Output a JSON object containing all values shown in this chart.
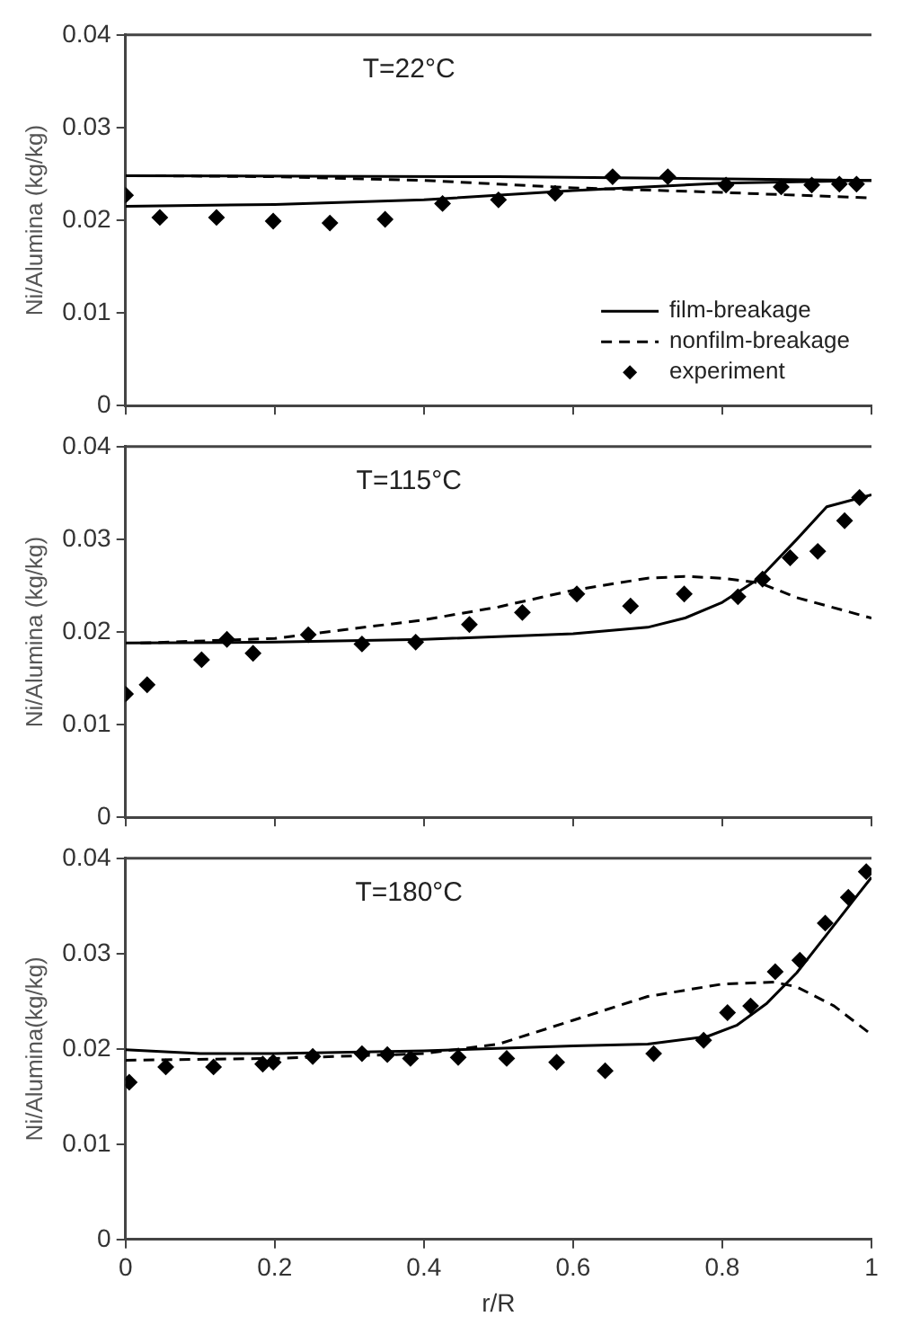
{
  "chart_data": [
    {
      "type": "line",
      "ylabel": "Ni/Alumina (kg/kg)",
      "annotations": [
        "T=22°C"
      ],
      "xlim": [
        0,
        1
      ],
      "xticks": [
        0,
        0.2,
        0.4,
        0.6,
        0.8,
        1
      ],
      "ylim": [
        0,
        0.04
      ],
      "yticks": [
        0,
        0.01,
        0.02,
        0.03,
        0.04
      ],
      "tick_labels": "y",
      "grid": false,
      "legend": "bottom right",
      "series": [
        {
          "type": "line",
          "name": "film-breakage",
          "color": "#000000",
          "line_style": "solid",
          "marker": "none",
          "x": [
            0,
            0.2,
            0.4,
            0.6,
            0.8,
            1
          ],
          "values": [
            0.0215,
            0.0217,
            0.0222,
            0.0232,
            0.024,
            0.0243
          ]
        },
        {
          "type": "line",
          "name": "nonfilm-breakage",
          "color": "#000000",
          "line_style": "dashed",
          "marker": "none",
          "x": [
            0.04,
            0.2,
            0.4,
            0.6,
            0.8,
            1
          ],
          "values": [
            0.0248,
            0.0247,
            0.0243,
            0.0235,
            0.023,
            0.0224
          ]
        },
        {
          "type": "scatter",
          "name": "experiment",
          "color": "#000000",
          "marker": "diamond",
          "x": [
            0,
            0.046,
            0.122,
            0.198,
            0.274,
            0.348,
            0.425,
            0.5,
            0.576,
            0.653,
            0.727,
            0.805,
            0.879,
            0.92,
            0.957,
            0.98
          ],
          "values": [
            0.0227,
            0.0203,
            0.0203,
            0.0199,
            0.0197,
            0.0201,
            0.0218,
            0.0222,
            0.0229,
            0.0247,
            0.0247,
            0.0238,
            0.0236,
            0.0238,
            0.0239,
            0.0239
          ]
        },
        {
          "type": "line",
          "color": "#000000",
          "line_style": "solid",
          "marker": "none",
          "x": [
            0,
            0.5,
            1
          ],
          "values": [
            0.0248,
            0.0247,
            0.0243
          ]
        }
      ]
    },
    {
      "type": "line",
      "ylabel": "Ni/Alumina (kg/kg)",
      "annotations": [
        "T=115°C"
      ],
      "xlim": [
        0,
        1
      ],
      "xticks": [
        0,
        0.2,
        0.4,
        0.6,
        0.8,
        1
      ],
      "ylim": [
        0,
        0.04
      ],
      "yticks": [
        0,
        0.01,
        0.02,
        0.03,
        0.04
      ],
      "tick_labels": "y",
      "grid": false,
      "series": [
        {
          "type": "line",
          "color": "#000000",
          "line_style": "solid",
          "marker": "none",
          "x": [
            0,
            0.2,
            0.4,
            0.6,
            0.7,
            0.75,
            0.8,
            0.85,
            0.9,
            0.94,
            1
          ],
          "values": [
            0.0188,
            0.0189,
            0.0192,
            0.0198,
            0.0205,
            0.0215,
            0.0232,
            0.0258,
            0.03,
            0.0335,
            0.0348
          ]
        },
        {
          "type": "line",
          "color": "#000000",
          "line_style": "dashed",
          "marker": "none",
          "x": [
            0.02,
            0.2,
            0.4,
            0.5,
            0.6,
            0.7,
            0.75,
            0.8,
            0.85,
            0.9,
            1
          ],
          "values": [
            0.0188,
            0.0193,
            0.0213,
            0.0227,
            0.0245,
            0.0258,
            0.026,
            0.0258,
            0.0253,
            0.0237,
            0.0215
          ]
        },
        {
          "type": "scatter",
          "color": "#000000",
          "marker": "diamond",
          "x": [
            0,
            0.029,
            0.102,
            0.136,
            0.171,
            0.245,
            0.317,
            0.389,
            0.461,
            0.532,
            0.605,
            0.677,
            0.749,
            0.821,
            0.854,
            0.891,
            0.928,
            0.964,
            0.984
          ],
          "values": [
            0.0133,
            0.0143,
            0.017,
            0.0192,
            0.0177,
            0.0197,
            0.0187,
            0.0189,
            0.0208,
            0.0221,
            0.0241,
            0.0228,
            0.0241,
            0.0238,
            0.0257,
            0.028,
            0.0287,
            0.032,
            0.0345
          ]
        }
      ]
    },
    {
      "type": "line",
      "xlabel": "r/R",
      "ylabel": "Ni/Alumina(kg/kg)",
      "annotations": [
        "T=180°C"
      ],
      "xlim": [
        0,
        1
      ],
      "xticks": [
        0,
        0.2,
        0.4,
        0.6,
        0.8,
        1
      ],
      "ylim": [
        0,
        0.04
      ],
      "yticks": [
        0,
        0.01,
        0.02,
        0.03,
        0.04
      ],
      "grid": false,
      "series": [
        {
          "type": "line",
          "color": "#000000",
          "line_style": "solid",
          "marker": "none",
          "x": [
            0,
            0.1,
            0.2,
            0.4,
            0.6,
            0.7,
            0.78,
            0.82,
            0.86,
            0.9,
            0.94,
            0.98,
            1
          ],
          "values": [
            0.0199,
            0.0195,
            0.0195,
            0.0198,
            0.0203,
            0.0205,
            0.0213,
            0.0225,
            0.0248,
            0.028,
            0.032,
            0.036,
            0.038
          ]
        },
        {
          "type": "line",
          "color": "#000000",
          "line_style": "dashed",
          "marker": "none",
          "x": [
            0,
            0.2,
            0.4,
            0.5,
            0.6,
            0.7,
            0.8,
            0.87,
            0.9,
            0.95,
            1
          ],
          "values": [
            0.0188,
            0.019,
            0.0195,
            0.0205,
            0.023,
            0.0255,
            0.0268,
            0.027,
            0.0265,
            0.0245,
            0.0215
          ]
        },
        {
          "type": "scatter",
          "color": "#000000",
          "marker": "diamond",
          "x": [
            0.005,
            0.054,
            0.118,
            0.184,
            0.198,
            0.251,
            0.317,
            0.351,
            0.382,
            0.446,
            0.511,
            0.578,
            0.643,
            0.708,
            0.775,
            0.807,
            0.838,
            0.871,
            0.904,
            0.938,
            0.969,
            0.993
          ],
          "values": [
            0.0165,
            0.0181,
            0.0181,
            0.0184,
            0.0186,
            0.0192,
            0.0195,
            0.0194,
            0.019,
            0.0191,
            0.019,
            0.0186,
            0.0177,
            0.0195,
            0.0209,
            0.0238,
            0.0245,
            0.0281,
            0.0293,
            0.0332,
            0.0359,
            0.0386
          ]
        }
      ]
    }
  ]
}
